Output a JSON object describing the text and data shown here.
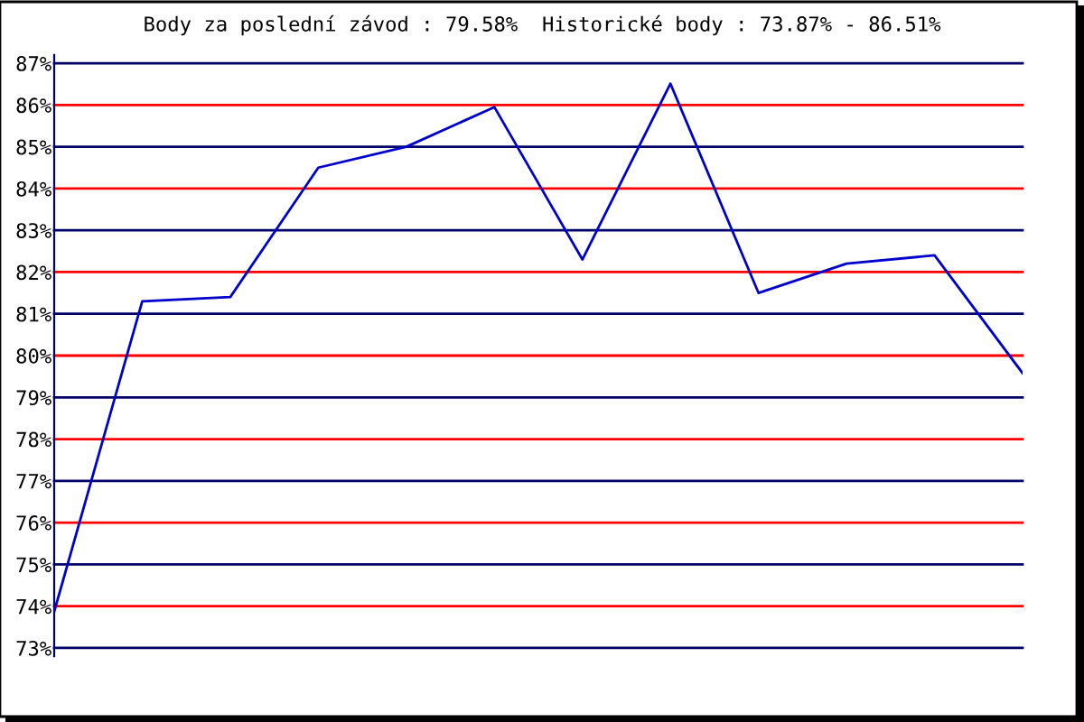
{
  "chart_data": {
    "type": "line",
    "title": "Body za poslední závod : 79.58%  Historické body : 73.87% - 86.51%",
    "categories": [
      null,
      null,
      null,
      null,
      null,
      null,
      null,
      null,
      null,
      null,
      null,
      null
    ],
    "series": [
      {
        "color": "#0000cc",
        "values": [
          73.87,
          81.3,
          81.4,
          84.5,
          85.0,
          85.95,
          82.3,
          86.51,
          81.5,
          82.2,
          82.4,
          79.58
        ]
      }
    ],
    "ylim": [
      72.8,
      87.2
    ],
    "yticks": [
      {
        "value": 73,
        "label": "73%"
      },
      {
        "value": 74,
        "label": "74%"
      },
      {
        "value": 75,
        "label": "75%"
      },
      {
        "value": 76,
        "label": "76%"
      },
      {
        "value": 77,
        "label": "77%"
      },
      {
        "value": 78,
        "label": "78%"
      },
      {
        "value": 79,
        "label": "79%"
      },
      {
        "value": 80,
        "label": "80%"
      },
      {
        "value": 81,
        "label": "81%"
      },
      {
        "value": 82,
        "label": "82%"
      },
      {
        "value": 83,
        "label": "83%"
      },
      {
        "value": 84,
        "label": "84%"
      },
      {
        "value": 85,
        "label": "85%"
      },
      {
        "value": 86,
        "label": "86%"
      },
      {
        "value": 87,
        "label": "87%"
      }
    ],
    "ref_lines": [
      {
        "axis": "y",
        "value": 73,
        "color": "#000066"
      },
      {
        "axis": "y",
        "value": 74,
        "color": "#ff0000"
      },
      {
        "axis": "y",
        "value": 75,
        "color": "#000066"
      },
      {
        "axis": "y",
        "value": 76,
        "color": "#ff0000"
      },
      {
        "axis": "y",
        "value": 77,
        "color": "#000066"
      },
      {
        "axis": "y",
        "value": 78,
        "color": "#ff0000"
      },
      {
        "axis": "y",
        "value": 79,
        "color": "#000066"
      },
      {
        "axis": "y",
        "value": 80,
        "color": "#ff0000"
      },
      {
        "axis": "y",
        "value": 81,
        "color": "#000066"
      },
      {
        "axis": "y",
        "value": 82,
        "color": "#ff0000"
      },
      {
        "axis": "y",
        "value": 83,
        "color": "#000066"
      },
      {
        "axis": "y",
        "value": 84,
        "color": "#ff0000"
      },
      {
        "axis": "y",
        "value": 85,
        "color": "#000066"
      },
      {
        "axis": "y",
        "value": 86,
        "color": "#ff0000"
      },
      {
        "axis": "y",
        "value": 87,
        "color": "#000066"
      }
    ],
    "grid": false,
    "legend": false,
    "marker": "none",
    "line_style": "solid"
  }
}
